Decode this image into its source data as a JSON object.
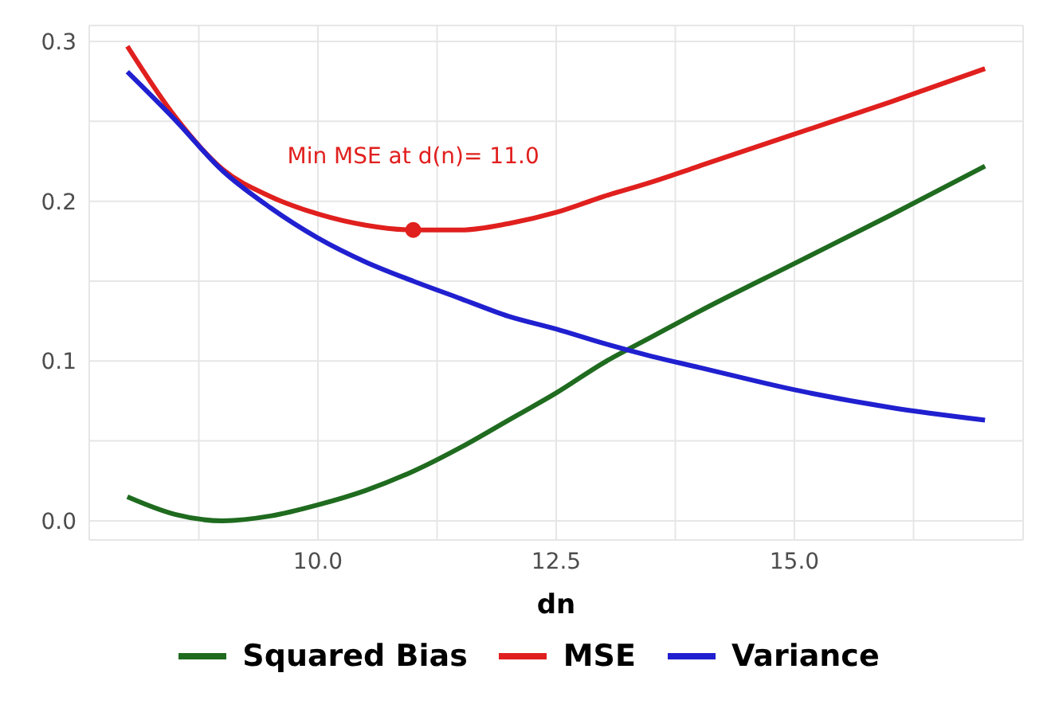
{
  "chart_data": {
    "type": "line",
    "xlabel": "dn",
    "x": [
      8,
      8.5,
      9,
      9.5,
      10,
      10.5,
      11,
      11.5,
      12,
      12.5,
      13,
      13.5,
      14,
      15,
      16,
      17
    ],
    "series": [
      {
        "name": "Squared Bias",
        "color": "#1f6b1f",
        "values": [
          0.015,
          0.004,
          0.0,
          0.003,
          0.01,
          0.019,
          0.031,
          0.046,
          0.063,
          0.08,
          0.099,
          0.115,
          0.131,
          0.161,
          0.191,
          0.222
        ]
      },
      {
        "name": "MSE",
        "color": "#e0201e",
        "values": [
          0.297,
          0.253,
          0.22,
          0.203,
          0.192,
          0.185,
          0.182,
          0.182,
          0.186,
          0.193,
          0.203,
          0.212,
          0.222,
          0.242,
          0.262,
          0.283
        ]
      },
      {
        "name": "Variance",
        "color": "#2020d0",
        "values": [
          0.281,
          0.251,
          0.219,
          0.196,
          0.177,
          0.162,
          0.15,
          0.139,
          0.128,
          0.12,
          0.111,
          0.103,
          0.096,
          0.082,
          0.071,
          0.063
        ]
      },
      {
        "type": "scatter",
        "color": "#e0201e",
        "x": [
          11
        ],
        "values": [
          0.182
        ],
        "marker": "circle"
      }
    ],
    "annotations": [
      "Min MSE at d(n)= 11.0"
    ],
    "xlim": [
      7.6,
      17.4
    ],
    "xticks": [
      {
        "value": 8.75,
        "label": null
      },
      {
        "value": 10,
        "label": "10.0"
      },
      {
        "value": 11.25,
        "label": null
      },
      12.5,
      {
        "value": 13.75,
        "label": null
      },
      {
        "value": 15,
        "label": "15.0"
      },
      {
        "value": 16.25,
        "label": null
      }
    ],
    "ylim": [
      -0.012,
      0.31
    ],
    "yticks": [
      {
        "value": 0,
        "label": "0.0"
      },
      {
        "value": 0.05,
        "label": null
      },
      0.1,
      {
        "value": 0.15,
        "label": null
      },
      0.2,
      {
        "value": 0.25,
        "label": null
      },
      0.3
    ],
    "grid": true,
    "legend": "bottom",
    "line_style": "solid"
  }
}
